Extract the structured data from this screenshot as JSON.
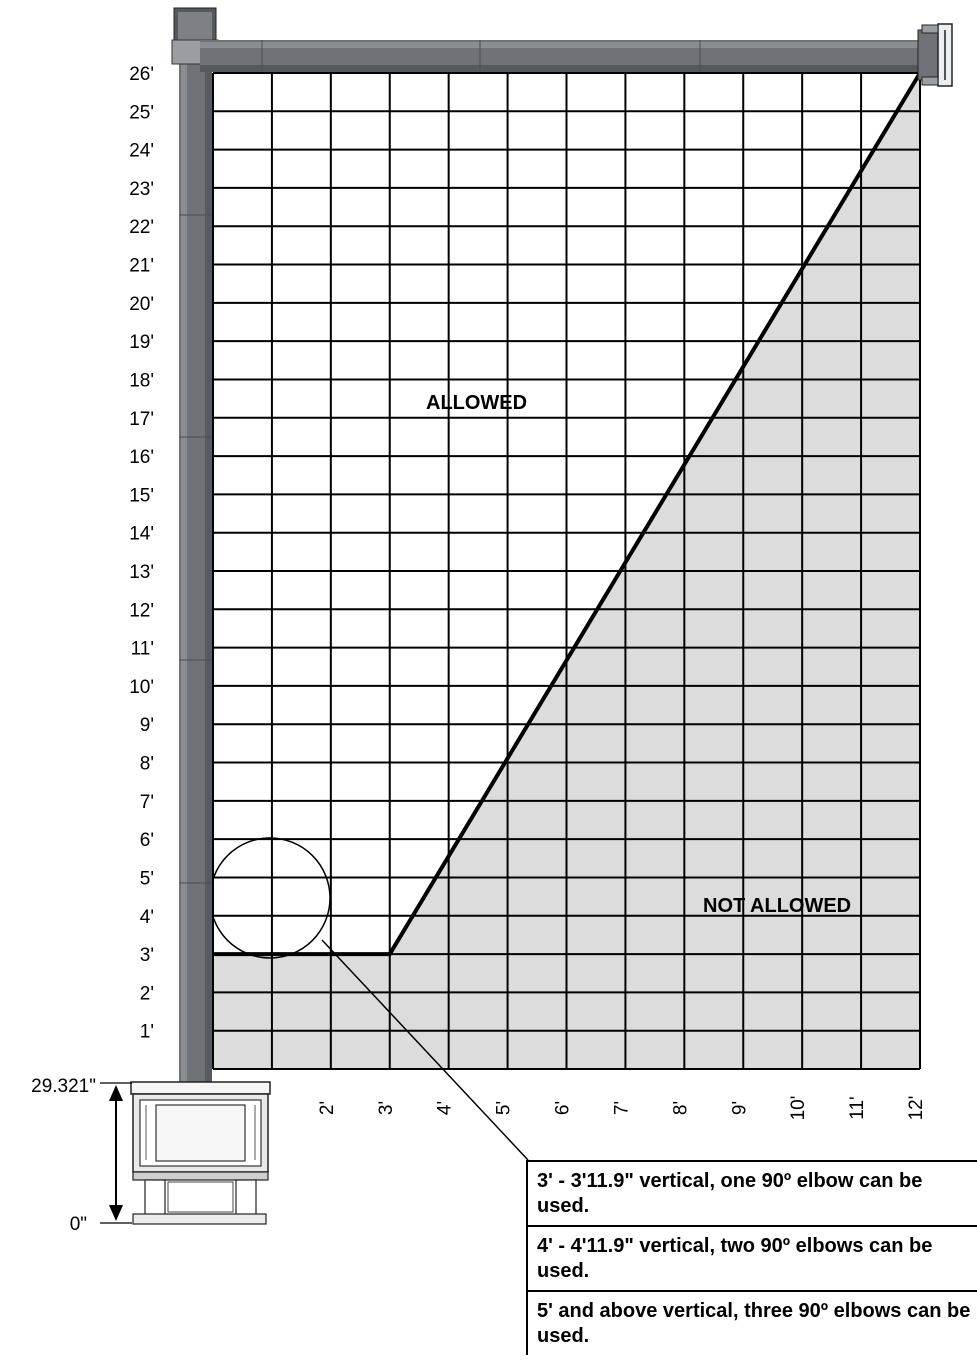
{
  "chart_data": {
    "type": "area",
    "y_tick_labels": [
      "1'",
      "2'",
      "3'",
      "4'",
      "5'",
      "6'",
      "7'",
      "8'",
      "9'",
      "10'",
      "11'",
      "12'",
      "13'",
      "14'",
      "15'",
      "16'",
      "17'",
      "18'",
      "19'",
      "20'",
      "21'",
      "22'",
      "23'",
      "24'",
      "25'",
      "26'"
    ],
    "x_tick_labels": [
      "2'",
      "3'",
      "4'",
      "5'",
      "6'",
      "7'",
      "8'",
      "9'",
      "10'",
      "11'",
      "12'"
    ],
    "xlim": [
      0,
      12
    ],
    "ylim": [
      0,
      26
    ],
    "grid": true,
    "boundary": {
      "x": [
        0,
        3,
        12
      ],
      "y": [
        3,
        3,
        26
      ]
    },
    "regions": {
      "allowed": "ALLOWED",
      "not_allowed": "NOT ALLOWED"
    }
  },
  "colors": {
    "pipe": "#6f7378",
    "not_allowed_fill": "#dcdcdc",
    "grid": "#000000"
  },
  "stove": {
    "top_label": "29.321\"",
    "bottom_label": "0\""
  },
  "notes": [
    "3' - 3'11.9\" vertical, one 90º elbow can be used.",
    "4' - 4'11.9\" vertical, two 90º elbows can be used.",
    "5' and above vertical, three 90º elbows can be used."
  ]
}
